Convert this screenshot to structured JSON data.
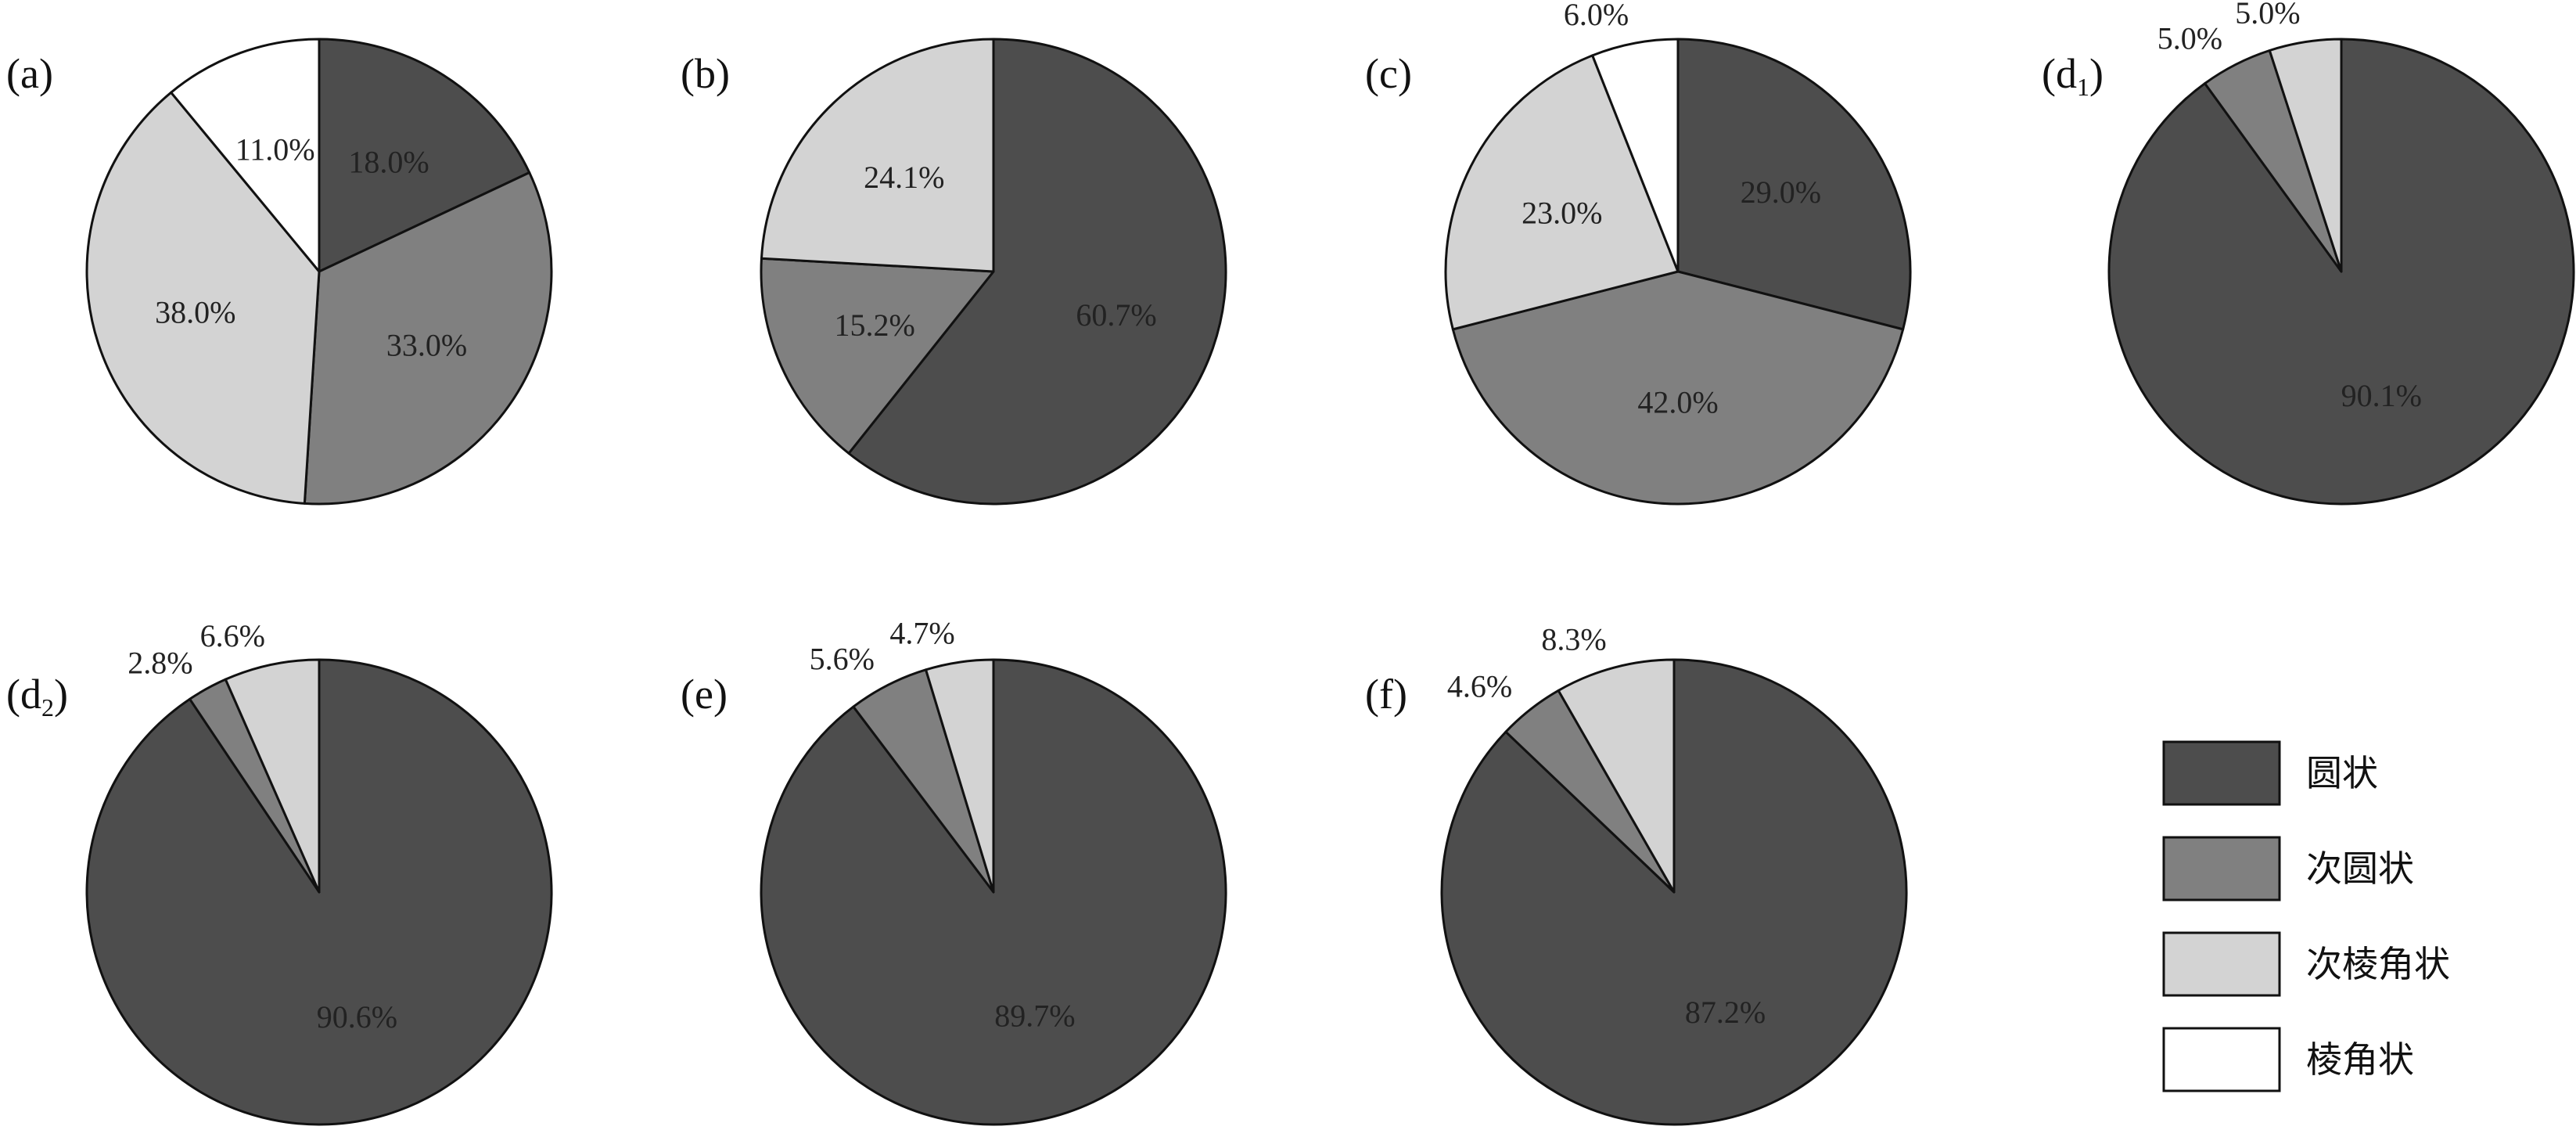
{
  "colors": {
    "圆状": "#4d4d4d",
    "次圆状": "#808080",
    "次棱角状": "#d3d3d3",
    "棱角状": "#ffffff",
    "outline": "#111111"
  },
  "legend": {
    "items": [
      {
        "label": "圆状",
        "color_key": "圆状"
      },
      {
        "label": "次圆状",
        "color_key": "次圆状"
      },
      {
        "label": "次棱角状",
        "color_key": "次棱角状"
      },
      {
        "label": "棱角状",
        "color_key": "棱角状"
      }
    ]
  },
  "chart_data": [
    {
      "type": "pie",
      "panel": "(a)",
      "slices": [
        {
          "category": "圆状",
          "value": 18.0,
          "label": "18.0%"
        },
        {
          "category": "次圆状",
          "value": 33.0,
          "label": "33.0%"
        },
        {
          "category": "次棱角状",
          "value": 38.0,
          "label": "38.0%"
        },
        {
          "category": "棱角状",
          "value": 11.0,
          "label": "11.0%"
        }
      ]
    },
    {
      "type": "pie",
      "panel": "(b)",
      "slices": [
        {
          "category": "圆状",
          "value": 60.7,
          "label": "60.7%"
        },
        {
          "category": "次圆状",
          "value": 15.2,
          "label": "15.2%"
        },
        {
          "category": "次棱角状",
          "value": 24.1,
          "label": "24.1%"
        }
      ]
    },
    {
      "type": "pie",
      "panel": "(c)",
      "slices": [
        {
          "category": "圆状",
          "value": 29.0,
          "label": "29.0%"
        },
        {
          "category": "次圆状",
          "value": 42.0,
          "label": "42.0%"
        },
        {
          "category": "次棱角状",
          "value": 23.0,
          "label": "23.0%"
        },
        {
          "category": "棱角状",
          "value": 6.0,
          "label": "6.0%"
        }
      ]
    },
    {
      "type": "pie",
      "panel": "(d1)",
      "panel_parts": {
        "main": "(d",
        "sub": "1",
        "close": ")"
      },
      "slices": [
        {
          "category": "圆状",
          "value": 90.1,
          "label": "90.1%"
        },
        {
          "category": "次圆状",
          "value": 5.0,
          "label": "5.0%"
        },
        {
          "category": "次棱角状",
          "value": 5.0,
          "label": "5.0%"
        }
      ]
    },
    {
      "type": "pie",
      "panel": "(d2)",
      "panel_parts": {
        "main": "(d",
        "sub": "2",
        "close": ")"
      },
      "slices": [
        {
          "category": "圆状",
          "value": 90.6,
          "label": "90.6%"
        },
        {
          "category": "次圆状",
          "value": 2.8,
          "label": "2.8%"
        },
        {
          "category": "次棱角状",
          "value": 6.6,
          "label": "6.6%"
        }
      ]
    },
    {
      "type": "pie",
      "panel": "(e)",
      "slices": [
        {
          "category": "圆状",
          "value": 89.7,
          "label": "89.7%"
        },
        {
          "category": "次圆状",
          "value": 5.6,
          "label": "5.6%"
        },
        {
          "category": "次棱角状",
          "value": 4.7,
          "label": "4.7%"
        }
      ]
    },
    {
      "type": "pie",
      "panel": "(f)",
      "slices": [
        {
          "category": "圆状",
          "value": 87.2,
          "label": "87.2%"
        },
        {
          "category": "次圆状",
          "value": 4.6,
          "label": "4.6%"
        },
        {
          "category": "次棱角状",
          "value": 8.3,
          "label": "8.3%"
        }
      ]
    }
  ]
}
